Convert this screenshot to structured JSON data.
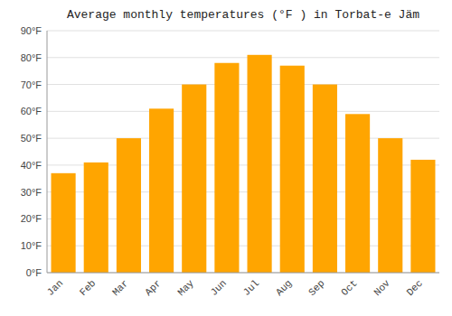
{
  "chart_data": {
    "type": "bar",
    "title": "Average monthly temperatures (°F ) in Torbat-e Jäm",
    "categories": [
      "Jan",
      "Feb",
      "Mar",
      "Apr",
      "May",
      "Jun",
      "Jul",
      "Aug",
      "Sep",
      "Oct",
      "Nov",
      "Dec"
    ],
    "values": [
      37,
      41,
      50,
      61,
      70,
      78,
      81,
      77,
      70,
      59,
      50,
      42
    ],
    "color": "#FFA500",
    "ylim": [
      0,
      90
    ],
    "yticks": [
      {
        "value": 0,
        "label": "0°F"
      },
      {
        "value": 10,
        "label": "10°F"
      },
      {
        "value": 20,
        "label": "20°F"
      },
      {
        "value": 30,
        "label": "30°F"
      },
      {
        "value": 40,
        "label": "40°F"
      },
      {
        "value": 50,
        "label": "50°F"
      },
      {
        "value": 60,
        "label": "60°F"
      },
      {
        "value": 70,
        "label": "70°F"
      },
      {
        "value": 80,
        "label": "80°F"
      },
      {
        "value": 90,
        "label": "90°F"
      }
    ],
    "grid": true
  }
}
